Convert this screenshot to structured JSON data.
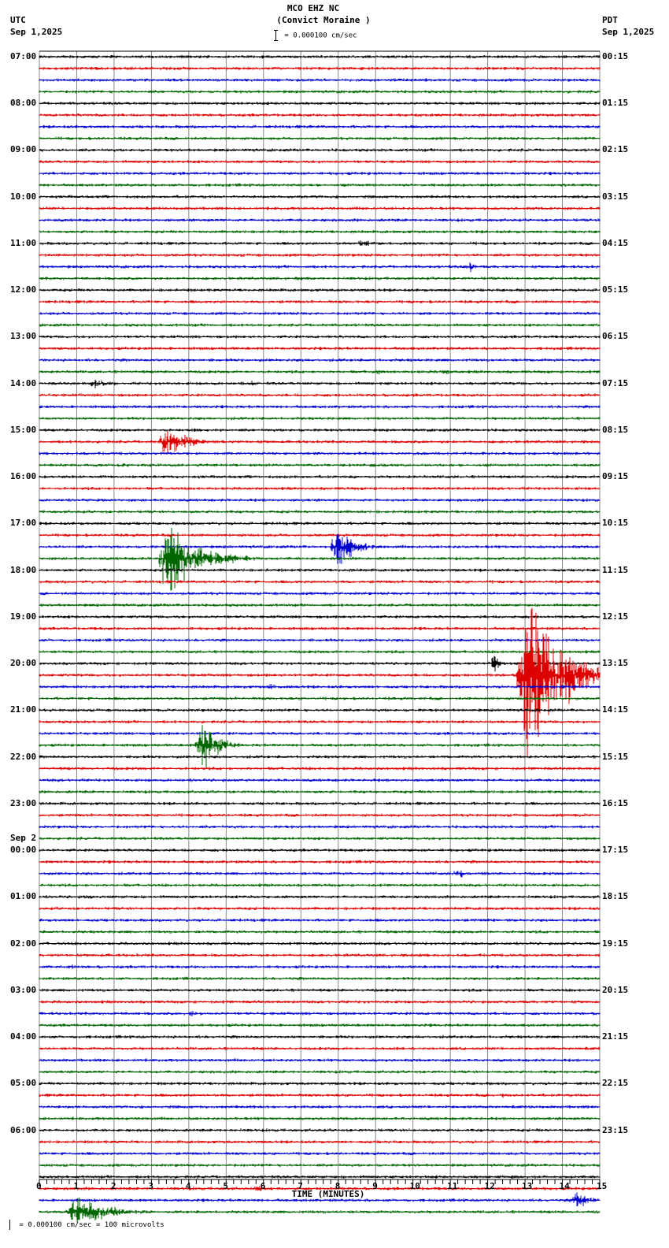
{
  "header": {
    "station": "MCO EHZ NC",
    "location": "(Convict Moraine )",
    "scale_text": "= 0.000100 cm/sec",
    "left_tz": "UTC",
    "left_date": "Sep 1,2025",
    "right_tz": "PDT",
    "right_date": "Sep 1,2025"
  },
  "footer": {
    "scale_text": "= 0.000100 cm/sec =     100 microvolts"
  },
  "colors": {
    "trace_cycle": [
      "#000000",
      "#dd0000",
      "#0000cc",
      "#006600"
    ],
    "grid": "#888888"
  },
  "chart_data": {
    "type": "line",
    "title": "MCO EHZ NC (Convict Moraine )",
    "subtitle": "= 0.000100 cm/sec",
    "xlabel": "TIME (MINUTES)",
    "ylabel": "",
    "x_ticks": [
      "0",
      "1",
      "2",
      "3",
      "4",
      "5",
      "6",
      "7",
      "8",
      "9",
      "10",
      "11",
      "12",
      "13",
      "14",
      "15"
    ],
    "xlim": [
      0,
      15
    ],
    "grid": true,
    "traces_per_hour": 4,
    "trace_minutes": 15,
    "left_hour_labels": [
      "07:00",
      "08:00",
      "09:00",
      "10:00",
      "11:00",
      "12:00",
      "13:00",
      "14:00",
      "15:00",
      "16:00",
      "17:00",
      "18:00",
      "19:00",
      "20:00",
      "21:00",
      "22:00",
      "23:00",
      "Sep 2",
      "00:00",
      "01:00",
      "02:00",
      "03:00",
      "04:00",
      "05:00",
      "06:00"
    ],
    "right_hour_labels": [
      "00:15",
      "01:15",
      "02:15",
      "03:15",
      "04:15",
      "05:15",
      "06:15",
      "07:15",
      "08:15",
      "09:15",
      "10:15",
      "11:15",
      "12:15",
      "13:15",
      "14:15",
      "15:15",
      "16:15",
      "17:15",
      "18:15",
      "19:15",
      "20:15",
      "21:15",
      "22:15",
      "23:15"
    ],
    "events": [
      {
        "row": 0,
        "minute": 1.2,
        "amp": 3,
        "dur": 0.8
      },
      {
        "row": 1,
        "minute": 0.9,
        "amp": 3,
        "dur": 0.5
      },
      {
        "row": 5,
        "minute": 10.2,
        "amp": 3,
        "dur": 0.5
      },
      {
        "row": 11,
        "minute": 7.0,
        "amp": 4,
        "dur": 0.4
      },
      {
        "row": 16,
        "minute": 8.6,
        "amp": 7,
        "dur": 1.2
      },
      {
        "row": 18,
        "minute": 11.6,
        "amp": 10,
        "dur": 0.2
      },
      {
        "row": 19,
        "minute": 7.0,
        "amp": 4,
        "dur": 0.4
      },
      {
        "row": 22,
        "minute": 10.4,
        "amp": 3,
        "dur": 0.5
      },
      {
        "row": 27,
        "minute": 9.1,
        "amp": 5,
        "dur": 0.4
      },
      {
        "row": 27,
        "minute": 10.9,
        "amp": 6,
        "dur": 0.5
      },
      {
        "row": 28,
        "minute": 1.5,
        "amp": 9,
        "dur": 0.9
      },
      {
        "row": 28,
        "minute": 5.7,
        "amp": 5,
        "dur": 0.3
      },
      {
        "row": 32,
        "minute": 4.2,
        "amp": 4,
        "dur": 0.8
      },
      {
        "row": 33,
        "minute": 3.4,
        "amp": 22,
        "dur": 1.8
      },
      {
        "row": 36,
        "minute": 8.4,
        "amp": 4,
        "dur": 0.3
      },
      {
        "row": 38,
        "minute": 1.5,
        "amp": 4,
        "dur": 0.6
      },
      {
        "row": 42,
        "minute": 8.0,
        "amp": 30,
        "dur": 1.3
      },
      {
        "row": 43,
        "minute": 3.4,
        "amp": 55,
        "dur": 2.6
      },
      {
        "row": 43,
        "minute": 5.1,
        "amp": 6,
        "dur": 0.7
      },
      {
        "row": 52,
        "minute": 12.2,
        "amp": 12,
        "dur": 0.5
      },
      {
        "row": 53,
        "minute": 13.0,
        "amp": 150,
        "dur": 2.6
      },
      {
        "row": 54,
        "minute": 6.2,
        "amp": 5,
        "dur": 0.5
      },
      {
        "row": 59,
        "minute": 4.4,
        "amp": 45,
        "dur": 1.0
      },
      {
        "row": 62,
        "minute": 6.0,
        "amp": 3,
        "dur": 0.4
      },
      {
        "row": 70,
        "minute": 11.2,
        "amp": 7,
        "dur": 1.0
      },
      {
        "row": 72,
        "minute": 1.4,
        "amp": 4,
        "dur": 0.3
      },
      {
        "row": 72,
        "minute": 5.7,
        "amp": 3,
        "dur": 0.8
      },
      {
        "row": 74,
        "minute": 12.2,
        "amp": 3,
        "dur": 0.6
      },
      {
        "row": 78,
        "minute": 0.9,
        "amp": 5,
        "dur": 0.3
      },
      {
        "row": 82,
        "minute": 4.1,
        "amp": 6,
        "dur": 0.3
      },
      {
        "row": 85,
        "minute": 9.1,
        "amp": 3,
        "dur": 0.6
      },
      {
        "row": 89,
        "minute": 12.4,
        "amp": 4,
        "dur": 0.8
      },
      {
        "row": 96,
        "minute": 12.7,
        "amp": 4,
        "dur": 0.8
      },
      {
        "row": 97,
        "minute": 5.9,
        "amp": 6,
        "dur": 0.6
      },
      {
        "row": 98,
        "minute": 14.4,
        "amp": 14,
        "dur": 1.2
      },
      {
        "row": 99,
        "minute": 0.9,
        "amp": 26,
        "dur": 2.6
      }
    ]
  }
}
